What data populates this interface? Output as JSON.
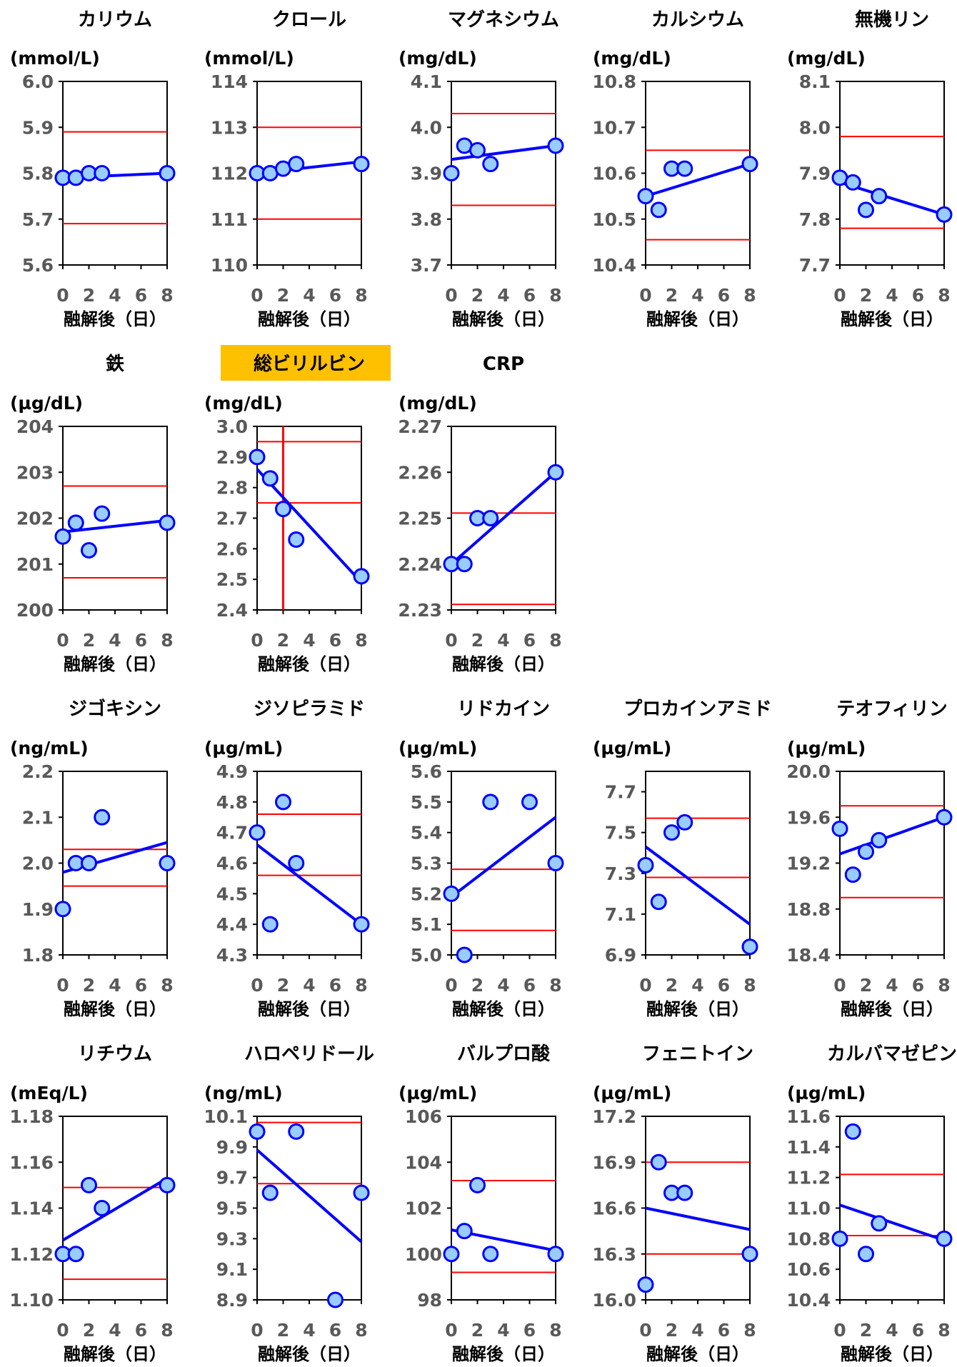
{
  "xlabel": "融解後（日）",
  "highlight_color": "#FFC000",
  "colors": {
    "data": "#0000FF",
    "point_fill": "#99CCFF",
    "limit": "#FF0000",
    "axis": "#000000",
    "tick_text": "#595959"
  },
  "chart_data": [
    {
      "type": "scatter",
      "title": "カリウム",
      "highlight": false,
      "unit": "(mmol/L)",
      "ylim": [
        5.6,
        6.0
      ],
      "yticks": [
        "5.6",
        "5.7",
        "5.8",
        "5.9",
        "6.0"
      ],
      "xlim": [
        0,
        8
      ],
      "xticks": [
        "0",
        "2",
        "4",
        "6",
        "8"
      ],
      "x": [
        0,
        1,
        2,
        3,
        8
      ],
      "y": [
        5.79,
        5.79,
        5.8,
        5.8,
        5.8
      ],
      "trend": [
        5.79,
        5.8
      ],
      "hlines": [
        5.69,
        5.89
      ]
    },
    {
      "type": "scatter",
      "title": "クロール",
      "highlight": false,
      "unit": "(mmol/L)",
      "ylim": [
        110,
        114
      ],
      "yticks": [
        "110",
        "111",
        "112",
        "113",
        "114"
      ],
      "xlim": [
        0,
        8
      ],
      "xticks": [
        "0",
        "2",
        "4",
        "6",
        "8"
      ],
      "x": [
        0,
        1,
        2,
        3,
        8
      ],
      "y": [
        112,
        112,
        112.1,
        112.2,
        112.2
      ],
      "trend": [
        112.0,
        112.25
      ],
      "hlines": [
        111,
        113
      ]
    },
    {
      "type": "scatter",
      "title": "マグネシウム",
      "highlight": false,
      "unit": "(mg/dL)",
      "ylim": [
        3.7,
        4.1
      ],
      "yticks": [
        "3.7",
        "3.8",
        "3.9",
        "4.0",
        "4.1"
      ],
      "xlim": [
        0,
        8
      ],
      "xticks": [
        "0",
        "2",
        "4",
        "6",
        "8"
      ],
      "x": [
        0,
        1,
        2,
        3,
        8
      ],
      "y": [
        3.9,
        3.96,
        3.95,
        3.92,
        3.96
      ],
      "trend": [
        3.93,
        3.96
      ],
      "hlines": [
        3.83,
        4.03
      ]
    },
    {
      "type": "scatter",
      "title": "カルシウム",
      "highlight": false,
      "unit": "(mg/dL)",
      "ylim": [
        10.4,
        10.8
      ],
      "yticks": [
        "10.4",
        "10.5",
        "10.6",
        "10.7",
        "10.8"
      ],
      "xlim": [
        0,
        8
      ],
      "xticks": [
        "0",
        "2",
        "4",
        "6",
        "8"
      ],
      "x": [
        0,
        1,
        2,
        3,
        8
      ],
      "y": [
        10.55,
        10.52,
        10.61,
        10.61,
        10.62
      ],
      "trend": [
        10.55,
        10.62
      ],
      "hlines": [
        10.455,
        10.65
      ]
    },
    {
      "type": "scatter",
      "title": "無機リン",
      "highlight": false,
      "unit": "(mg/dL)",
      "ylim": [
        7.7,
        8.1
      ],
      "yticks": [
        "7.7",
        "7.8",
        "7.9",
        "8.0",
        "8.1"
      ],
      "xlim": [
        0,
        8
      ],
      "xticks": [
        "0",
        "2",
        "4",
        "6",
        "8"
      ],
      "x": [
        0,
        1,
        2,
        3,
        8
      ],
      "y": [
        7.89,
        7.88,
        7.82,
        7.85,
        7.81
      ],
      "trend": [
        7.88,
        7.81
      ],
      "hlines": [
        7.78,
        7.98
      ]
    },
    {
      "type": "scatter",
      "title": "鉄",
      "highlight": false,
      "unit": "(µg/dL)",
      "ylim": [
        200,
        204
      ],
      "yticks": [
        "200",
        "201",
        "202",
        "203",
        "204"
      ],
      "xlim": [
        0,
        8
      ],
      "xticks": [
        "0",
        "2",
        "4",
        "6",
        "8"
      ],
      "x": [
        0,
        1,
        2,
        3,
        8
      ],
      "y": [
        201.6,
        201.9,
        201.3,
        202.1,
        201.9
      ],
      "trend": [
        201.7,
        201.95
      ],
      "hlines": [
        200.7,
        202.7
      ]
    },
    {
      "type": "scatter",
      "title": "総ビリルビン",
      "highlight": true,
      "unit": "(mg/dL)",
      "ylim": [
        2.4,
        3.0
      ],
      "yticks": [
        "2.4",
        "2.5",
        "2.6",
        "2.7",
        "2.8",
        "2.9",
        "3.0"
      ],
      "xlim": [
        0,
        8
      ],
      "xticks": [
        "0",
        "2",
        "4",
        "6",
        "8"
      ],
      "x": [
        0,
        1,
        2,
        3,
        8
      ],
      "y": [
        2.9,
        2.83,
        2.73,
        2.63,
        2.51
      ],
      "trend": [
        2.86,
        2.49
      ],
      "hlines": [
        2.75,
        2.95
      ],
      "vlines": [
        2
      ]
    },
    {
      "type": "scatter",
      "title": "CRP",
      "highlight": false,
      "unit": "(mg/dL)",
      "ylim": [
        2.23,
        2.27
      ],
      "yticks": [
        "2.23",
        "2.24",
        "2.25",
        "2.26",
        "2.27"
      ],
      "xlim": [
        0,
        8
      ],
      "xticks": [
        "0",
        "2",
        "4",
        "6",
        "8"
      ],
      "x": [
        0,
        1,
        2,
        3,
        8
      ],
      "y": [
        2.24,
        2.24,
        2.25,
        2.25,
        2.26
      ],
      "trend": [
        2.24,
        2.26
      ],
      "hlines": [
        2.2312,
        2.2511
      ]
    },
    {
      "type": "scatter",
      "title": "ジゴキシン",
      "highlight": false,
      "unit": "(ng/mL)",
      "ylim": [
        1.8,
        2.2
      ],
      "yticks": [
        "1.8",
        "1.9",
        "2.0",
        "2.1",
        "2.2"
      ],
      "xlim": [
        0,
        8
      ],
      "xticks": [
        "0",
        "2",
        "4",
        "6",
        "8"
      ],
      "x": [
        0,
        1,
        2,
        3,
        8
      ],
      "y": [
        1.9,
        2.0,
        2.0,
        2.1,
        2.0
      ],
      "trend": [
        1.98,
        2.045
      ],
      "hlines": [
        1.95,
        2.03
      ]
    },
    {
      "type": "scatter",
      "title": "ジソピラミド",
      "highlight": false,
      "unit": "(µg/mL)",
      "ylim": [
        4.3,
        4.9
      ],
      "yticks": [
        "4.3",
        "4.4",
        "4.5",
        "4.6",
        "4.7",
        "4.8",
        "4.9"
      ],
      "xlim": [
        0,
        8
      ],
      "xticks": [
        "0",
        "2",
        "4",
        "6",
        "8"
      ],
      "x": [
        0,
        1,
        2,
        3,
        8
      ],
      "y": [
        4.7,
        4.4,
        4.8,
        4.6,
        4.4
      ],
      "trend": [
        4.66,
        4.4
      ],
      "hlines": [
        4.56,
        4.76
      ]
    },
    {
      "type": "scatter",
      "title": "リドカイン",
      "highlight": false,
      "unit": "(µg/mL)",
      "ylim": [
        5.0,
        5.6
      ],
      "yticks": [
        "5.0",
        "5.1",
        "5.2",
        "5.3",
        "5.4",
        "5.5",
        "5.6"
      ],
      "xlim": [
        0,
        8
      ],
      "xticks": [
        "0",
        "2",
        "4",
        "6",
        "8"
      ],
      "x": [
        0,
        1,
        3,
        6,
        8
      ],
      "y": [
        5.2,
        5.0,
        5.5,
        5.5,
        5.3
      ],
      "trend": [
        5.19,
        5.45
      ],
      "hlines": [
        5.08,
        5.28
      ]
    },
    {
      "type": "scatter",
      "title": "プロカインアミド",
      "highlight": false,
      "unit": "(µg/mL)",
      "ylim": [
        6.9,
        7.8
      ],
      "yticks": [
        "6.9",
        "7.1",
        "7.3",
        "7.5",
        "7.7"
      ],
      "xlim": [
        0,
        8
      ],
      "xticks": [
        "0",
        "2",
        "4",
        "6",
        "8"
      ],
      "x": [
        0,
        1,
        2,
        3,
        8
      ],
      "y": [
        7.34,
        7.16,
        7.5,
        7.55,
        6.94
      ],
      "trend": [
        7.43,
        7.05
      ],
      "hlines": [
        7.28,
        7.57
      ]
    },
    {
      "type": "scatter",
      "title": "テオフィリン",
      "highlight": false,
      "unit": "(µg/mL)",
      "ylim": [
        18.4,
        20.0
      ],
      "yticks": [
        "18.4",
        "18.8",
        "19.2",
        "19.6",
        "20.0"
      ],
      "xlim": [
        0,
        8
      ],
      "xticks": [
        "0",
        "2",
        "4",
        "6",
        "8"
      ],
      "x": [
        0,
        1,
        2,
        3,
        8
      ],
      "y": [
        19.5,
        19.1,
        19.3,
        19.4,
        19.6
      ],
      "trend": [
        19.28,
        19.6
      ],
      "hlines": [
        18.9,
        19.7
      ]
    },
    {
      "type": "scatter",
      "title": "リチウム",
      "highlight": false,
      "unit": "(mEq/L)",
      "ylim": [
        1.1,
        1.18
      ],
      "yticks": [
        "1.10",
        "1.12",
        "1.14",
        "1.16",
        "1.18"
      ],
      "xlim": [
        0,
        8
      ],
      "xticks": [
        "0",
        "2",
        "4",
        "6",
        "8"
      ],
      "x": [
        0,
        1,
        2,
        3,
        8
      ],
      "y": [
        1.12,
        1.12,
        1.15,
        1.14,
        1.15
      ],
      "trend": [
        1.126,
        1.153
      ],
      "hlines": [
        1.109,
        1.149
      ]
    },
    {
      "type": "scatter",
      "title": "ハロペリドール",
      "highlight": false,
      "unit": "(ng/mL)",
      "ylim": [
        8.9,
        10.1
      ],
      "yticks": [
        "8.9",
        "9.1",
        "9.3",
        "9.5",
        "9.7",
        "9.9",
        "10.1"
      ],
      "xlim": [
        0,
        8
      ],
      "xticks": [
        "0",
        "2",
        "4",
        "6",
        "8"
      ],
      "x": [
        0,
        1,
        3,
        6,
        8
      ],
      "y": [
        10.0,
        9.6,
        10.0,
        8.9,
        9.6
      ],
      "trend": [
        9.88,
        9.28
      ],
      "hlines": [
        9.66,
        10.06
      ]
    },
    {
      "type": "scatter",
      "title": "バルプロ酸",
      "highlight": false,
      "unit": "(µg/mL)",
      "ylim": [
        98,
        106
      ],
      "yticks": [
        "98",
        "100",
        "102",
        "104",
        "106"
      ],
      "xlim": [
        0,
        8
      ],
      "xticks": [
        "0",
        "2",
        "4",
        "6",
        "8"
      ],
      "x": [
        0,
        1,
        2,
        3,
        8
      ],
      "y": [
        100,
        101,
        103,
        100,
        100
      ],
      "trend": [
        101.05,
        100.15
      ],
      "hlines": [
        99.2,
        103.2
      ]
    },
    {
      "type": "scatter",
      "title": "フェニトイン",
      "highlight": false,
      "unit": "(µg/mL)",
      "ylim": [
        16.0,
        17.2
      ],
      "yticks": [
        "16.0",
        "16.3",
        "16.6",
        "16.9",
        "17.2"
      ],
      "xlim": [
        0,
        8
      ],
      "xticks": [
        "0",
        "2",
        "4",
        "6",
        "8"
      ],
      "x": [
        0,
        1,
        2,
        3,
        8
      ],
      "y": [
        16.1,
        16.9,
        16.7,
        16.7,
        16.3
      ],
      "trend": [
        16.6,
        16.46
      ],
      "hlines": [
        16.3,
        16.9
      ]
    },
    {
      "type": "scatter",
      "title": "カルバマゼピン",
      "highlight": false,
      "unit": "(µg/mL)",
      "ylim": [
        10.4,
        11.6
      ],
      "yticks": [
        "10.4",
        "10.6",
        "10.8",
        "11.0",
        "11.2",
        "11.4",
        "11.6"
      ],
      "xlim": [
        0,
        8
      ],
      "xticks": [
        "0",
        "2",
        "4",
        "6",
        "8"
      ],
      "x": [
        0,
        1,
        2,
        3,
        8
      ],
      "y": [
        10.8,
        11.5,
        10.7,
        10.9,
        10.8
      ],
      "trend": [
        11.02,
        10.79
      ],
      "hlines": [
        10.82,
        11.22
      ]
    }
  ]
}
